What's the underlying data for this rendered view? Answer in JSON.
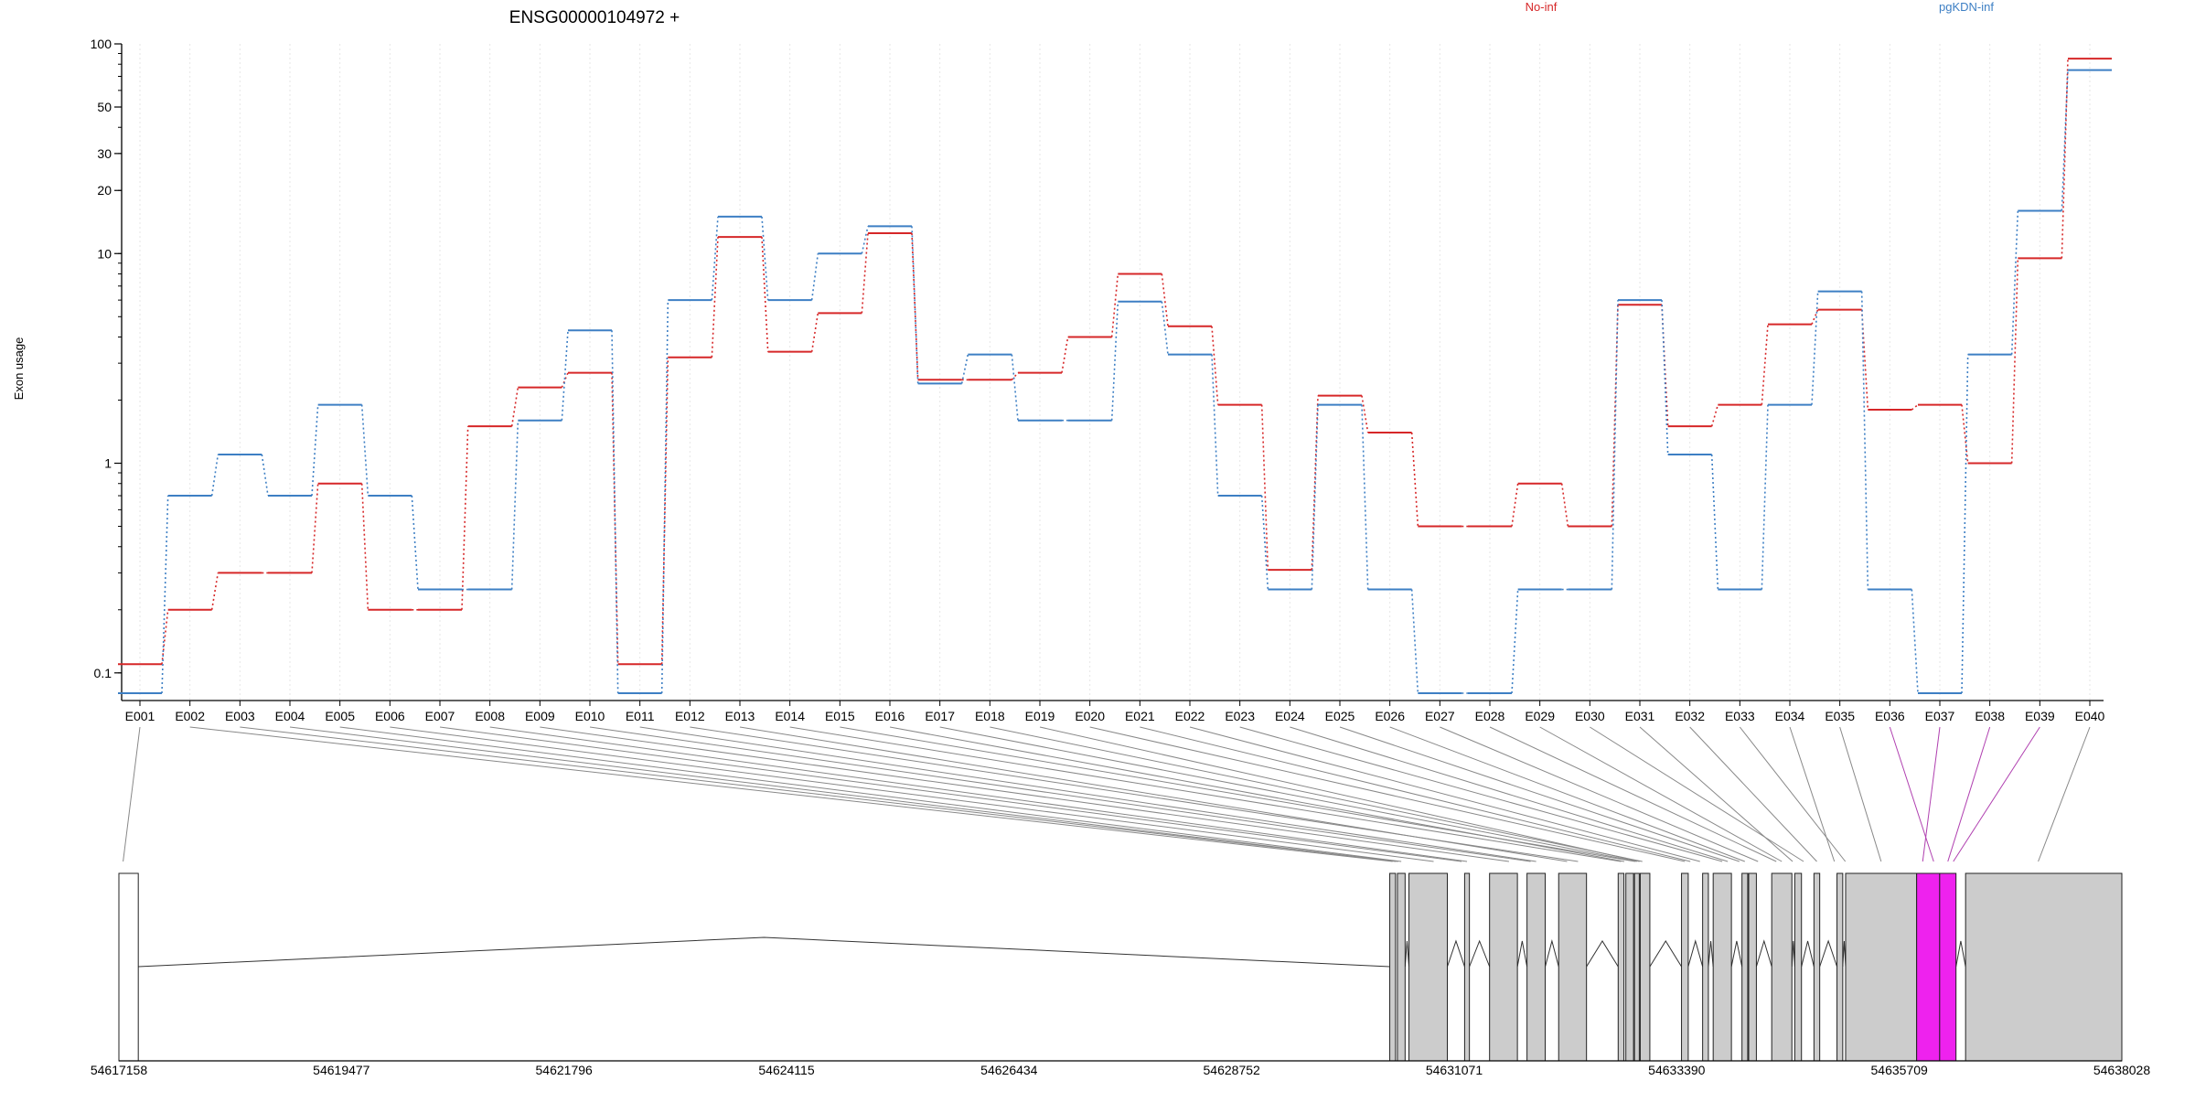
{
  "chart_data": {
    "type": "line",
    "title": "ENSG00000104972 +",
    "ylabel": "Exon usage",
    "xlabel": "",
    "y_scale": "log",
    "ylim": [
      0.08,
      100
    ],
    "y_ticks": [
      0.1,
      1,
      10,
      20,
      30,
      50,
      100
    ],
    "y_tick_labels": [
      "0.1",
      "1",
      "10",
      "20",
      "30",
      "50",
      "100"
    ],
    "grid": "vertical dotted",
    "legend_placement": "top",
    "categories": [
      "E001",
      "E002",
      "E003",
      "E004",
      "E005",
      "E006",
      "E007",
      "E008",
      "E009",
      "E010",
      "E011",
      "E012",
      "E013",
      "E014",
      "E015",
      "E016",
      "E017",
      "E018",
      "E019",
      "E020",
      "E021",
      "E022",
      "E023",
      "E024",
      "E025",
      "E026",
      "E027",
      "E028",
      "E029",
      "E030",
      "E031",
      "E032",
      "E033",
      "E034",
      "E035",
      "E036",
      "E037",
      "E038",
      "E039",
      "E040"
    ],
    "series": [
      {
        "name": "No-inf",
        "color": "#d62728",
        "values": [
          0.11,
          0.2,
          0.3,
          0.3,
          0.8,
          0.2,
          0.2,
          1.5,
          2.3,
          2.7,
          0.11,
          3.2,
          12,
          3.4,
          5.2,
          12.5,
          2.5,
          2.5,
          2.7,
          4,
          8,
          4.5,
          1.9,
          0.31,
          2.1,
          1.4,
          0.5,
          0.5,
          0.8,
          0.5,
          5.7,
          1.5,
          1.9,
          4.6,
          5.4,
          1.8,
          1.9,
          1,
          9.5,
          85
        ]
      },
      {
        "name": "pgKDN-inf",
        "color": "#3d7fc4",
        "values": [
          0.08,
          0.7,
          1.1,
          0.7,
          1.9,
          0.7,
          0.25,
          0.25,
          1.6,
          4.3,
          0.08,
          6,
          15,
          6,
          10,
          13.5,
          2.4,
          3.3,
          1.6,
          1.6,
          5.9,
          3.3,
          0.7,
          0.25,
          1.9,
          0.25,
          0.08,
          0.08,
          0.25,
          0.25,
          6,
          1.1,
          0.25,
          1.9,
          6.6,
          0.25,
          0.08,
          3.3,
          16,
          75
        ]
      }
    ],
    "gene_model": {
      "coordinate_ticks": [
        "54617158",
        "54619477",
        "54621796",
        "54624115",
        "54626434",
        "54628752",
        "54631071",
        "54633390",
        "54635709",
        "54638028"
      ],
      "coord_range": [
        54617158,
        54638028
      ],
      "exons": [
        {
          "start": 54617158,
          "end": 54617360,
          "highlight": false
        },
        {
          "start": 54630400,
          "end": 54630460,
          "highlight": false
        },
        {
          "start": 54630480,
          "end": 54630560,
          "highlight": false
        },
        {
          "start": 54630600,
          "end": 54631000,
          "highlight": false
        },
        {
          "start": 54631180,
          "end": 54631230,
          "highlight": false
        },
        {
          "start": 54631440,
          "end": 54631730,
          "highlight": false
        },
        {
          "start": 54631830,
          "end": 54632020,
          "highlight": false
        },
        {
          "start": 54632160,
          "end": 54632450,
          "highlight": false
        },
        {
          "start": 54632780,
          "end": 54632840,
          "highlight": false
        },
        {
          "start": 54632860,
          "end": 54632940,
          "highlight": false
        },
        {
          "start": 54632950,
          "end": 54633000,
          "highlight": false
        },
        {
          "start": 54633010,
          "end": 54633110,
          "highlight": false
        },
        {
          "start": 54633440,
          "end": 54633510,
          "highlight": false
        },
        {
          "start": 54633660,
          "end": 54633720,
          "highlight": false
        },
        {
          "start": 54633770,
          "end": 54633960,
          "highlight": false
        },
        {
          "start": 54634070,
          "end": 54634130,
          "highlight": false
        },
        {
          "start": 54634140,
          "end": 54634220,
          "highlight": false
        },
        {
          "start": 54634380,
          "end": 54634590,
          "highlight": false
        },
        {
          "start": 54634620,
          "end": 54634690,
          "highlight": false
        },
        {
          "start": 54634820,
          "end": 54634880,
          "highlight": false
        },
        {
          "start": 54635060,
          "end": 54635120,
          "highlight": false
        },
        {
          "start": 54635150,
          "end": 54635890,
          "highlight": false
        },
        {
          "start": 54635890,
          "end": 54636130,
          "highlight": true
        },
        {
          "start": 54636130,
          "end": 54636300,
          "highlight": true
        },
        {
          "start": 54636400,
          "end": 54638028,
          "highlight": false
        }
      ],
      "highlight_color": "#ee22ee",
      "exon_color": "#cccccc"
    }
  },
  "legend": [
    {
      "label": "No-inf",
      "color": "#d62728"
    },
    {
      "label": "pgKDN-inf",
      "color": "#3d7fc4"
    }
  ]
}
